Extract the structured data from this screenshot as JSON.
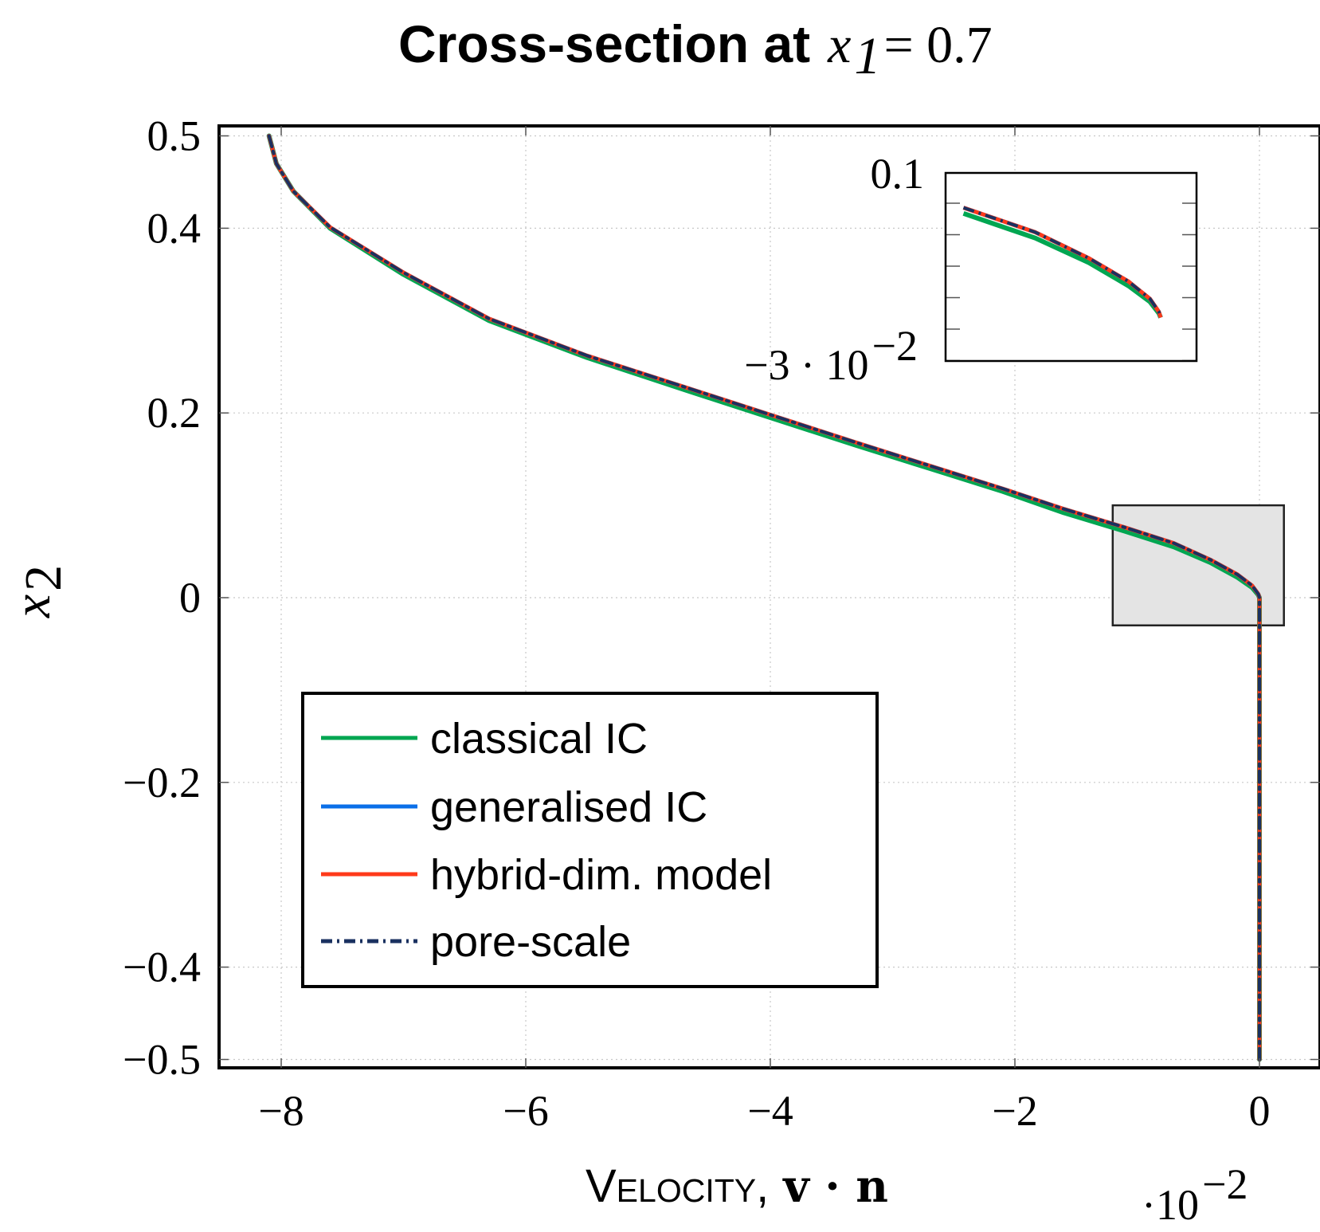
{
  "title": {
    "prefix": "Cross-section at",
    "math_var": "x",
    "math_sub": "1",
    "math_rest": " = 0.7"
  },
  "xlabel": {
    "word": "Velocity,",
    "math": "v · n"
  },
  "ylabel": {
    "var": "x",
    "sub": "2"
  },
  "x_multiplier": {
    "base": "·10",
    "exp": "−2"
  },
  "colors": {
    "classical_ic": "#00a651",
    "generalised_ic": "#0b6fe8",
    "hybrid_dim": "#ff3a1a",
    "pore_scale": "#1a3160",
    "zoom_box_fill": "#e4e4e4",
    "grid": "#c8c8c8"
  },
  "chart_data": {
    "type": "line",
    "xlabel": "Velocity, v · n",
    "ylabel": "x2",
    "x_scale_note": "·10^−2",
    "xlim": [
      -8.5,
      0.5
    ],
    "ylim": [
      -0.51,
      0.51
    ],
    "x_ticks": [
      -8,
      -6,
      -4,
      -2,
      0
    ],
    "x_tick_labels": [
      "−8",
      "−6",
      "−4",
      "−2",
      "0"
    ],
    "y_ticks": [
      -0.5,
      -0.4,
      -0.2,
      0,
      0.2,
      0.4,
      0.5
    ],
    "y_tick_labels": [
      "−0.5",
      "−0.4",
      "−0.2",
      "0",
      "0.2",
      "0.4",
      "0.5"
    ],
    "grid": true,
    "legend_position": "lower-left",
    "series": [
      {
        "name": "classical IC",
        "style": "solid",
        "points": [
          [
            -8.1,
            0.5
          ],
          [
            -8.04,
            0.47
          ],
          [
            -7.9,
            0.44
          ],
          [
            -7.6,
            0.4
          ],
          [
            -7.0,
            0.35
          ],
          [
            -6.3,
            0.3
          ],
          [
            -5.5,
            0.26
          ],
          [
            -4.7,
            0.225
          ],
          [
            -4.0,
            0.195
          ],
          [
            -3.3,
            0.165
          ],
          [
            -2.7,
            0.14
          ],
          [
            -2.1,
            0.115
          ],
          [
            -1.6,
            0.092
          ],
          [
            -1.1,
            0.072
          ],
          [
            -0.7,
            0.055
          ],
          [
            -0.4,
            0.038
          ],
          [
            -0.18,
            0.022
          ],
          [
            -0.06,
            0.011
          ],
          [
            -0.01,
            0.003
          ],
          [
            0.0,
            0.0
          ],
          [
            0.0,
            -0.5
          ]
        ]
      },
      {
        "name": "generalised IC",
        "style": "solid",
        "points": [
          [
            -8.1,
            0.5
          ],
          [
            -8.04,
            0.47
          ],
          [
            -7.9,
            0.44
          ],
          [
            -7.6,
            0.401
          ],
          [
            -7.0,
            0.352
          ],
          [
            -6.3,
            0.302
          ],
          [
            -5.5,
            0.262
          ],
          [
            -4.7,
            0.228
          ],
          [
            -4.0,
            0.198
          ],
          [
            -3.3,
            0.168
          ],
          [
            -2.7,
            0.143
          ],
          [
            -2.1,
            0.118
          ],
          [
            -1.6,
            0.096
          ],
          [
            -1.1,
            0.076
          ],
          [
            -0.7,
            0.059
          ],
          [
            -0.4,
            0.041
          ],
          [
            -0.18,
            0.025
          ],
          [
            -0.06,
            0.013
          ],
          [
            -0.01,
            0.004
          ],
          [
            0.0,
            0.0
          ],
          [
            0.0,
            -0.5
          ]
        ]
      },
      {
        "name": "hybrid-dim. model",
        "style": "solid",
        "points": [
          [
            -8.1,
            0.5
          ],
          [
            -8.04,
            0.47
          ],
          [
            -7.9,
            0.44
          ],
          [
            -7.6,
            0.401
          ],
          [
            -7.0,
            0.352
          ],
          [
            -6.3,
            0.302
          ],
          [
            -5.5,
            0.262
          ],
          [
            -4.7,
            0.228
          ],
          [
            -4.0,
            0.198
          ],
          [
            -3.3,
            0.168
          ],
          [
            -2.7,
            0.143
          ],
          [
            -2.1,
            0.118
          ],
          [
            -1.6,
            0.096
          ],
          [
            -1.1,
            0.076
          ],
          [
            -0.7,
            0.059
          ],
          [
            -0.4,
            0.041
          ],
          [
            -0.18,
            0.025
          ],
          [
            -0.06,
            0.013
          ],
          [
            -0.01,
            0.004
          ],
          [
            0.0,
            0.0
          ],
          [
            0.0,
            -0.5
          ]
        ]
      },
      {
        "name": "pore-scale",
        "style": "dash-dot",
        "points": [
          [
            -8.1,
            0.5
          ],
          [
            -8.04,
            0.47
          ],
          [
            -7.9,
            0.44
          ],
          [
            -7.6,
            0.401
          ],
          [
            -7.0,
            0.352
          ],
          [
            -6.3,
            0.302
          ],
          [
            -5.5,
            0.262
          ],
          [
            -4.7,
            0.228
          ],
          [
            -4.0,
            0.198
          ],
          [
            -3.3,
            0.168
          ],
          [
            -2.7,
            0.143
          ],
          [
            -2.1,
            0.118
          ],
          [
            -1.6,
            0.096
          ],
          [
            -1.1,
            0.076
          ],
          [
            -0.7,
            0.059
          ],
          [
            -0.4,
            0.041
          ],
          [
            -0.18,
            0.025
          ],
          [
            -0.06,
            0.013
          ],
          [
            -0.01,
            0.004
          ],
          [
            0.0,
            0.0
          ],
          [
            0.0,
            -0.5
          ]
        ]
      }
    ],
    "zoom_region": {
      "xlim": [
        -1.2,
        0.2
      ],
      "ylim": [
        -0.03,
        0.1
      ]
    },
    "inset": {
      "y_tick_labels": [
        "0.1",
        "−3 · 10"
      ],
      "y_tick_label_exp": "−2",
      "ylim": [
        -0.03,
        0.1
      ]
    }
  }
}
